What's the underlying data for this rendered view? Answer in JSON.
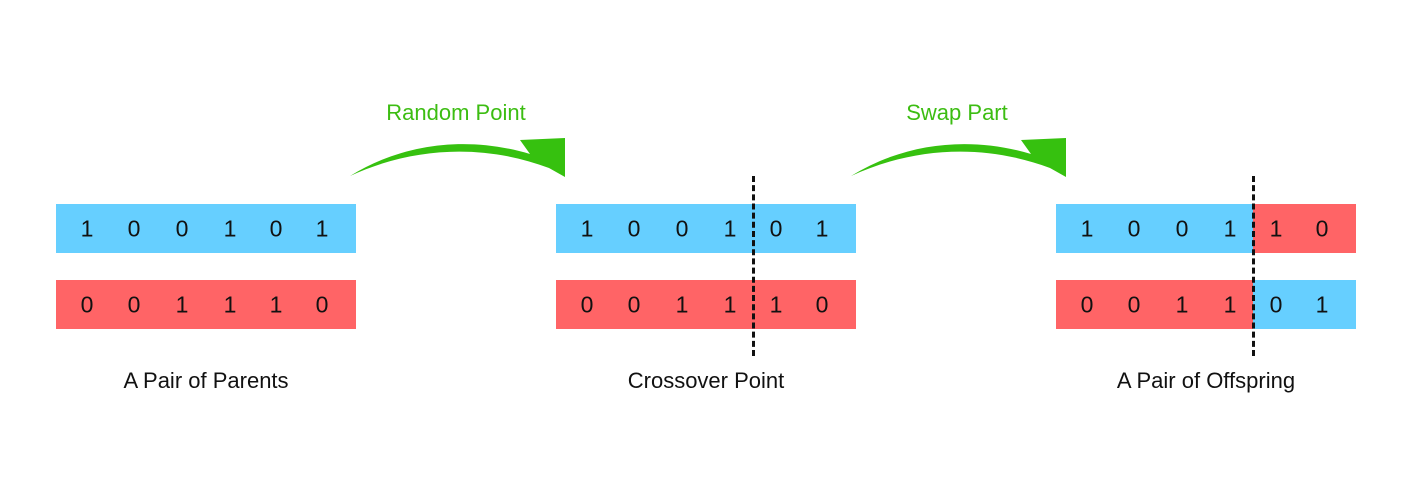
{
  "colors": {
    "blue": "#66cfff",
    "red": "#ff6466",
    "green": "#36c10f",
    "text": "#111111"
  },
  "stages": [
    {
      "caption": "A Pair of Parents",
      "top": {
        "bits": [
          "1",
          "0",
          "0",
          "1",
          "0",
          "1"
        ],
        "colors": [
          "blue",
          "blue",
          "blue",
          "blue",
          "blue",
          "blue"
        ]
      },
      "bottom": {
        "bits": [
          "0",
          "0",
          "1",
          "1",
          "1",
          "0"
        ],
        "colors": [
          "red",
          "red",
          "red",
          "red",
          "red",
          "red"
        ]
      }
    },
    {
      "caption": "Crossover Point",
      "top": {
        "bits": [
          "1",
          "0",
          "0",
          "1",
          "0",
          "1"
        ],
        "colors": [
          "blue",
          "blue",
          "blue",
          "blue",
          "blue",
          "blue"
        ]
      },
      "bottom": {
        "bits": [
          "0",
          "0",
          "1",
          "1",
          "1",
          "0"
        ],
        "colors": [
          "red",
          "red",
          "red",
          "red",
          "red",
          "red"
        ]
      }
    },
    {
      "caption": "A Pair of Offspring",
      "top": {
        "bits": [
          "1",
          "0",
          "0",
          "1",
          "1",
          "0"
        ],
        "colors": [
          "blue",
          "blue",
          "blue",
          "blue",
          "red",
          "red"
        ]
      },
      "bottom": {
        "bits": [
          "0",
          "0",
          "1",
          "1",
          "0",
          "1"
        ],
        "colors": [
          "red",
          "red",
          "red",
          "red",
          "blue",
          "blue"
        ]
      }
    }
  ],
  "steps": [
    {
      "label": "Random Point"
    },
    {
      "label": "Swap Part"
    }
  ]
}
